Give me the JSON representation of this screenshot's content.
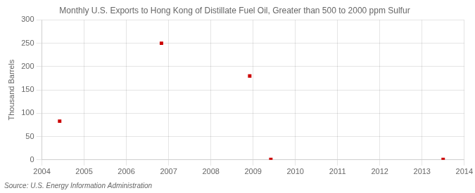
{
  "chart_data": {
    "type": "scatter",
    "title": "Monthly U.S. Exports to Hong Kong of Distillate Fuel Oil, Greater than 500 to 2000 ppm Sulfur",
    "ylabel": "Thousand Barrels",
    "annotations": [
      "Source: U.S. Energy Information Administration"
    ],
    "x": [
      2004.42,
      2006.83,
      2008.92,
      2009.42,
      2013.5
    ],
    "values": [
      83,
      250,
      180,
      1,
      1
    ],
    "color": "#cc0000",
    "marker": "square",
    "xlim": [
      2004,
      2014
    ],
    "xticks": [
      2004,
      2005,
      2006,
      2007,
      2008,
      2009,
      2010,
      2011,
      2012,
      2013,
      2014
    ],
    "ylim": [
      0,
      300
    ],
    "yticks": [
      0,
      50,
      100,
      150,
      200,
      250,
      300
    ],
    "grid": true
  }
}
